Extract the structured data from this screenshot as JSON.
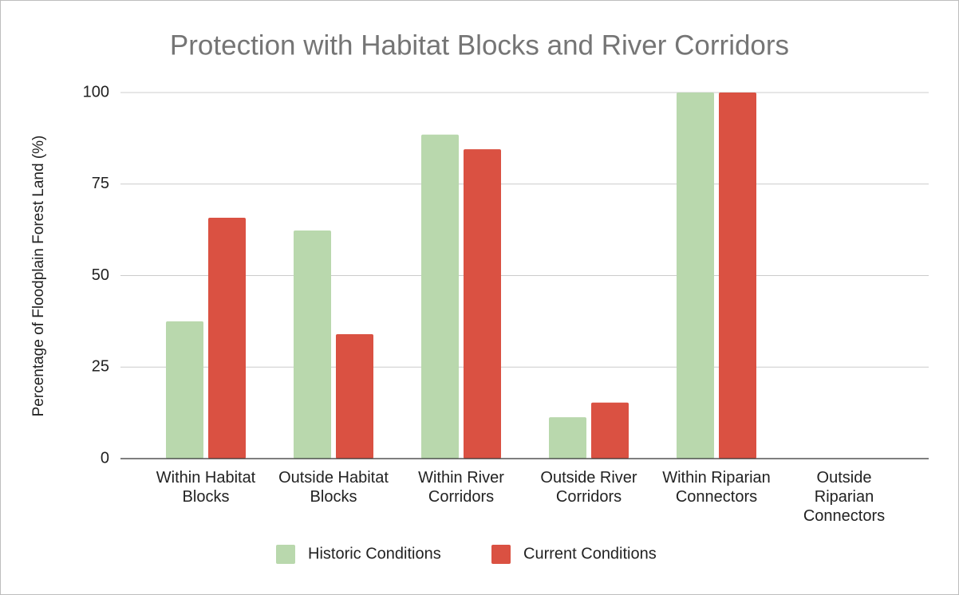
{
  "chart_data": {
    "type": "bar",
    "title": "Protection with Habitat Blocks and River Corridors",
    "y_label": "Percentage of Floodplain Forest Land (%)",
    "categories": [
      "Within Habitat Blocks",
      "Outside Habitat Blocks",
      "Within River Corridors",
      "Outside River Corridors",
      "Within Riparian Connectors",
      "Outside Riparian Connectors"
    ],
    "series": [
      {
        "name": "Historic Conditions",
        "color": "#b9d8ad",
        "values": [
          37.5,
          62.3,
          88.5,
          11.3,
          100,
          0
        ]
      },
      {
        "name": "Current Conditions",
        "color": "#da5142",
        "values": [
          65.8,
          34,
          84.5,
          15.3,
          100,
          0
        ]
      }
    ],
    "ylim": [
      0,
      100
    ],
    "yticks": [
      0,
      25,
      50,
      75,
      100
    ],
    "grid": true,
    "legend": "bottom"
  }
}
